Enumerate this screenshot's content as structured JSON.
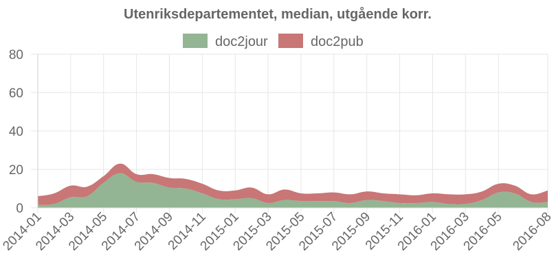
{
  "chart_data": {
    "type": "area",
    "stacked": true,
    "title": "Utenriksdepartementet, median, utgående korr.",
    "xlabel": "",
    "ylabel": "",
    "ylim": [
      0,
      80
    ],
    "yticks": [
      0,
      20,
      40,
      60,
      80
    ],
    "grid": true,
    "legend": "top-center",
    "x": [
      "2014-01",
      "2014-02",
      "2014-03",
      "2014-04",
      "2014-05",
      "2014-06",
      "2014-07",
      "2014-08",
      "2014-09",
      "2014-10",
      "2014-11",
      "2014-12",
      "2015-01",
      "2015-02",
      "2015-03",
      "2015-04",
      "2015-05",
      "2015-06",
      "2015-07",
      "2015-08",
      "2015-09",
      "2015-10",
      "2015-11",
      "2015-12",
      "2016-01",
      "2016-02",
      "2016-03",
      "2016-04",
      "2016-05",
      "2016-06",
      "2016-07",
      "2016-08"
    ],
    "xticks": [
      "2014-01",
      "2014-03",
      "2014-05",
      "2014-07",
      "2014-09",
      "2014-11",
      "2015-01",
      "2015-03",
      "2015-05",
      "2015-07",
      "2015-09",
      "2015-11",
      "2016-01",
      "2016-03",
      "2016-05",
      "2016-08"
    ],
    "series": [
      {
        "name": "doc2jour",
        "color": "#93b593",
        "values": [
          1.5,
          2,
          5.5,
          6,
          13,
          18,
          13.5,
          13,
          10.5,
          10,
          7.5,
          4.5,
          4.5,
          5,
          2.5,
          4,
          3.5,
          3.5,
          3.5,
          2.5,
          4,
          3.5,
          2.5,
          2.5,
          3,
          2,
          2,
          4,
          8,
          7.5,
          3,
          3
        ]
      },
      {
        "name": "doc2pub",
        "color": "#c97676",
        "values": [
          4.5,
          5.5,
          6,
          5,
          3.5,
          5,
          4,
          4.5,
          5,
          5,
          5,
          4.5,
          4.5,
          5.5,
          4.5,
          5.5,
          4,
          4,
          4.5,
          4.5,
          4.5,
          4,
          4.5,
          4,
          4.5,
          5,
          5,
          4.5,
          4.5,
          4,
          4,
          6
        ]
      }
    ]
  }
}
